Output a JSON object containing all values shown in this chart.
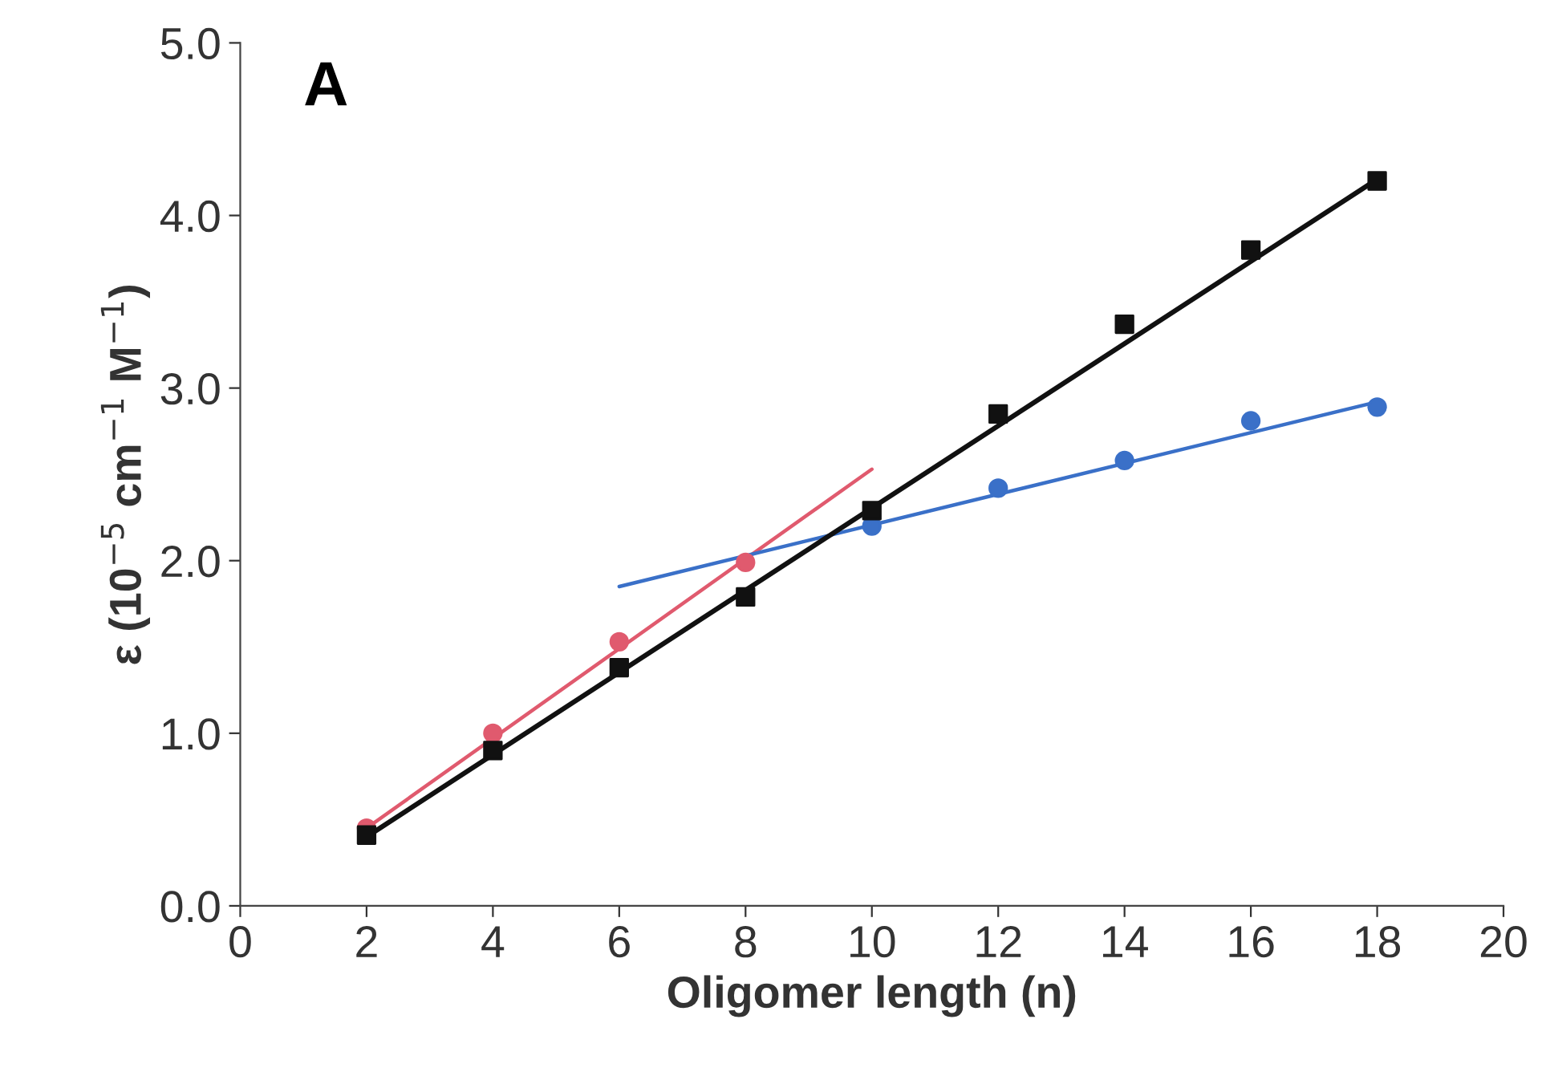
{
  "chart_data": {
    "type": "scatter",
    "title": "A",
    "xlabel": "Oligomer length (n)",
    "ylabel": "ε (10$^{−5}$ cm$^{−1}$ M$^{−1}$)",
    "xlim": [
      0,
      20
    ],
    "xticks": [
      0,
      2,
      4,
      6,
      8,
      10,
      12,
      14,
      16,
      18,
      20
    ],
    "ylim": [
      0,
      5
    ],
    "yticks": [
      {
        "value": 0,
        "label": "0.0"
      },
      {
        "value": 1,
        "label": "1.0"
      },
      {
        "value": 2,
        "label": "2.0"
      },
      {
        "value": 3,
        "label": "3.0"
      },
      {
        "value": 4,
        "label": "4.0"
      },
      {
        "value": 5,
        "label": "5.0"
      }
    ],
    "grid": false,
    "legend": false,
    "series": [
      {
        "type": "line",
        "color": "#e05a6e",
        "x": [
          2,
          10
        ],
        "values": [
          0.45,
          2.53
        ],
        "marker": "none"
      },
      {
        "type": "line",
        "color": "#3a70c8",
        "x": [
          6,
          18
        ],
        "values": [
          1.85,
          2.92
        ],
        "marker": "none"
      },
      {
        "type": "line",
        "color": "#111111",
        "x": [
          2,
          18
        ],
        "values": [
          0.4,
          4.21
        ],
        "marker": "none"
      },
      {
        "color": "#e05a6e",
        "x": [
          2,
          4,
          6,
          8
        ],
        "values": [
          0.45,
          1.0,
          1.53,
          1.99
        ],
        "marker": "circle"
      },
      {
        "color": "#3a70c8",
        "x": [
          10,
          12,
          14,
          16,
          18
        ],
        "values": [
          2.2,
          2.42,
          2.58,
          2.81,
          2.89
        ],
        "marker": "circle"
      },
      {
        "color": "#111111",
        "x": [
          2,
          4,
          6,
          8,
          10,
          12,
          14,
          16,
          18
        ],
        "values": [
          0.41,
          0.9,
          1.38,
          1.79,
          2.29,
          2.85,
          3.37,
          3.8,
          4.2
        ],
        "marker": "square"
      }
    ]
  }
}
